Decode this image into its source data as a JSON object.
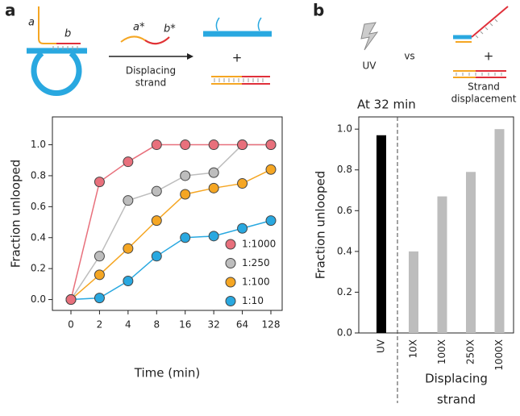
{
  "panels": [
    "a",
    "b"
  ],
  "diagrams": {
    "strand_a": "a",
    "strand_b": "b",
    "strand_a_star": "a*",
    "strand_b_star": "b*",
    "arrow_label": [
      "Displacing",
      "strand"
    ],
    "plus_a": "+",
    "uv": "UV",
    "vs": "vs",
    "plus_b": "+",
    "strand_displacement": [
      "Strand",
      "displacement"
    ]
  },
  "chart_data": [
    {
      "type": "line",
      "categories": [
        "0",
        "2",
        "4",
        "8",
        "16",
        "32",
        "64",
        "128"
      ],
      "xlabel": "Time (min)",
      "ylabel": "Fraction unlooped",
      "ylim": [
        -0.07,
        1.18
      ],
      "yticks": [
        {
          "value": 0,
          "label": "0.0"
        },
        0.2,
        0.4,
        0.6,
        0.8,
        {
          "value": 1,
          "label": "1.0"
        }
      ],
      "legend": "lower right",
      "series": [
        {
          "name": "1:1000",
          "color": "#e8707c",
          "values": [
            0,
            0.76,
            0.89,
            1.0,
            1.0,
            1.0,
            1.0,
            1.0
          ]
        },
        {
          "name": "1:250",
          "color": "#bdbdbd",
          "values": [
            0,
            0.28,
            0.64,
            0.7,
            0.8,
            0.82,
            1.0,
            1.0
          ]
        },
        {
          "name": "1:100",
          "color": "#f5a623",
          "values": [
            0,
            0.16,
            0.33,
            0.51,
            0.68,
            0.72,
            0.75,
            0.84
          ]
        },
        {
          "name": "1:10",
          "color": "#29a8e0",
          "values": [
            0,
            0.01,
            0.12,
            0.28,
            0.4,
            0.41,
            0.46,
            0.51
          ]
        }
      ]
    },
    {
      "type": "bar",
      "title": "At 32 min",
      "categories": [
        "UV",
        "10X",
        "100X",
        "250X",
        "1000X"
      ],
      "values": [
        0.97,
        0.4,
        0.67,
        0.79,
        1.0
      ],
      "colors": [
        "#000000",
        "#bdbdbd",
        "#bdbdbd",
        "#bdbdbd",
        "#bdbdbd"
      ],
      "xlabel": [
        "Displacing",
        "strand"
      ],
      "ylabel": "Fraction unlooped",
      "ylim": [
        0,
        1.06
      ],
      "yticks": [
        {
          "value": 0,
          "label": "0.0"
        },
        0.2,
        0.4,
        0.6,
        0.8,
        {
          "value": 1,
          "label": "1.0"
        }
      ]
    }
  ]
}
